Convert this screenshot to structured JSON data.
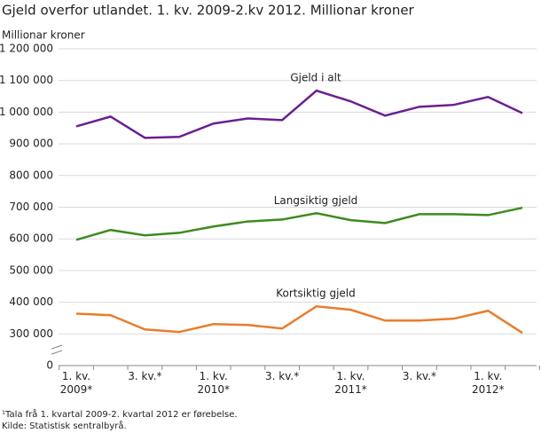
{
  "chart_data": {
    "type": "line",
    "title": "Gjeld overfor utlandet. 1. kv. 2009-2.kv 2012. Millionar kroner",
    "y_label": "Millionar kroner",
    "categories": [
      "1. kv.\n2009*",
      null,
      "3. kv.*",
      null,
      "1. kv.\n2010*",
      null,
      "3. kv.*",
      null,
      "1. kv.\n2011*",
      null,
      "3. kv.*",
      null,
      "1. kv.\n2012*",
      null
    ],
    "series": [
      {
        "name": "Gjeld i alt",
        "color": "#6b1f8f",
        "values": [
          955000,
          986000,
          919000,
          922000,
          964000,
          980000,
          975000,
          1068000,
          1034000,
          989000,
          1017000,
          1023000,
          1048000,
          997000
        ]
      },
      {
        "name": "Langsiktig gjeld",
        "color": "#3f8a1f",
        "values": [
          597000,
          628000,
          611000,
          619000,
          639000,
          655000,
          661000,
          681000,
          659000,
          650000,
          678000,
          678000,
          675000,
          698000
        ]
      },
      {
        "name": "Kortsiktig gjeld",
        "color": "#e87d2a",
        "values": [
          364000,
          359000,
          314000,
          306000,
          331000,
          328000,
          317000,
          387000,
          376000,
          342000,
          342000,
          348000,
          373000,
          303000
        ]
      }
    ],
    "ylim": [
      0,
      1200000
    ],
    "axis_break": [
      0,
      300000
    ],
    "yticks": [
      0,
      {
        "value": 300000,
        "label": "300 000"
      },
      {
        "value": 400000,
        "label": "400 000"
      },
      {
        "value": 500000,
        "label": "500 000"
      },
      {
        "value": 600000,
        "label": "600 000"
      },
      {
        "value": 700000,
        "label": "700 000"
      },
      {
        "value": 800000,
        "label": "800 000"
      },
      {
        "value": 900000,
        "label": "900 000"
      },
      {
        "value": 1000000,
        "label": "1 000 000"
      },
      {
        "value": 1100000,
        "label": "1 100 000"
      },
      {
        "value": 1200000,
        "label": "1 200 000"
      }
    ],
    "grid": true,
    "footnotes": [
      "¹Tala frå 1. kvartal 2009-2. kvartal 2012 er førebelse.",
      "Kilde: Statistisk sentralbyrå."
    ]
  }
}
